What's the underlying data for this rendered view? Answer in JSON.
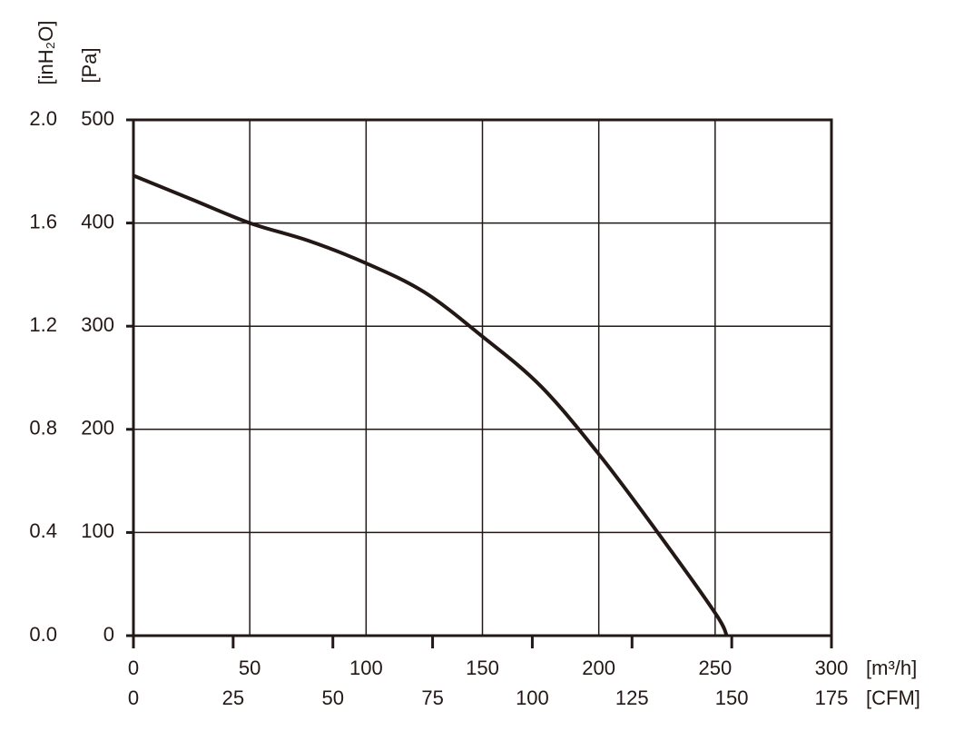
{
  "chart_data": {
    "type": "line",
    "x_label": "[m³/h]",
    "x2_label": "[CFM]",
    "y_label": "[Pa]",
    "y2_label": "[inH₂O]",
    "x": [
      0,
      25,
      50,
      75,
      100,
      125,
      150,
      175,
      200,
      225,
      250,
      255
    ],
    "series": [
      {
        "color": "#231815",
        "values": [
          446,
          423,
          400,
          383,
          361,
          333,
          290,
          242,
          176,
          101,
          22,
          0
        ]
      }
    ],
    "xlim": [
      0,
      300
    ],
    "xticks": [
      0,
      50,
      100,
      150,
      200,
      250,
      300
    ],
    "x2lim": [
      0,
      175
    ],
    "x2ticks": [
      0,
      25,
      50,
      75,
      100,
      125,
      150,
      175
    ],
    "ylim": [
      0,
      500
    ],
    "yticks": [
      0,
      100,
      200,
      300,
      400,
      500
    ],
    "y2lim": [
      0,
      2.0
    ],
    "y2ticks": [
      {
        "value": 0,
        "label": "0.0"
      },
      {
        "value": 0.4,
        "label": "0.4"
      },
      {
        "value": 0.8,
        "label": "0.8"
      },
      {
        "value": 1.2,
        "label": "1.2"
      },
      {
        "value": 1.6,
        "label": "1.6"
      },
      {
        "value": 2.0,
        "label": "2.0"
      }
    ],
    "grid": true
  }
}
